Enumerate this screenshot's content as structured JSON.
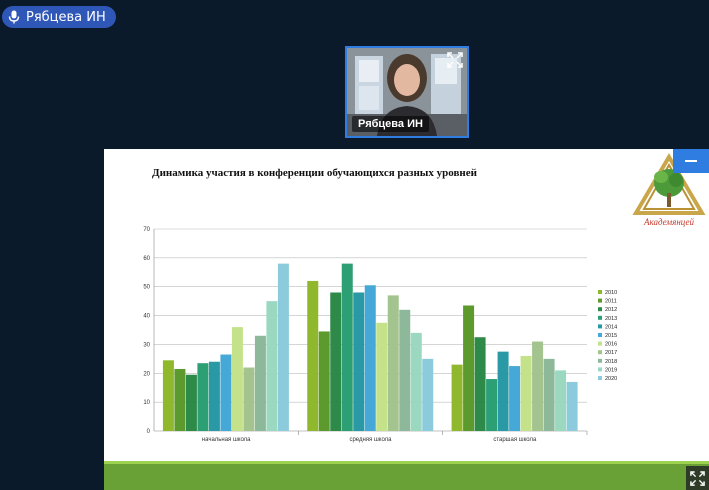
{
  "speaker": {
    "name": "Рябцева ИН"
  },
  "video_tile": {
    "name": "Рябцева ИН"
  },
  "slide": {
    "title": "Динамика участия в конференции обучающихся разных уровней"
  },
  "logo": {
    "text": "Академянцей"
  },
  "icons": {
    "mic": "microphone-icon",
    "fullscreen": "fullscreen-icon",
    "minimize": "minimize-icon",
    "expand": "expand-icon"
  },
  "chart_data": {
    "type": "bar",
    "categories": [
      "начальная школа",
      "средняя школа",
      "старшая школа"
    ],
    "series": [
      {
        "name": "2010",
        "color": "#8fb82c",
        "values": [
          24.5,
          52,
          23
        ]
      },
      {
        "name": "2011",
        "color": "#5d9a2e",
        "values": [
          21.5,
          34.5,
          43.5
        ]
      },
      {
        "name": "2012",
        "color": "#2e8a48",
        "values": [
          19.5,
          48,
          32.5
        ]
      },
      {
        "name": "2013",
        "color": "#2d9f74",
        "values": [
          23.5,
          58,
          18
        ]
      },
      {
        "name": "2014",
        "color": "#2a99a6",
        "values": [
          24,
          48,
          27.5
        ]
      },
      {
        "name": "2015",
        "color": "#45a8d6",
        "values": [
          26.5,
          50.5,
          22.5
        ]
      },
      {
        "name": "2016",
        "color": "#c3e28a",
        "values": [
          36,
          37.5,
          26
        ]
      },
      {
        "name": "2017",
        "color": "#a3c48e",
        "values": [
          22,
          47,
          31
        ]
      },
      {
        "name": "2018",
        "color": "#8db99a",
        "values": [
          33,
          42,
          25
        ]
      },
      {
        "name": "2019",
        "color": "#9ad8c0",
        "values": [
          45,
          34,
          21
        ]
      },
      {
        "name": "2020",
        "color": "#8ccbdc",
        "values": [
          58,
          25,
          17
        ]
      }
    ],
    "ylim": [
      0,
      70
    ],
    "yticks": [
      "0",
      "10",
      "20",
      "30",
      "40",
      "50",
      "60",
      "70"
    ],
    "grid": true,
    "legend_position": "right"
  }
}
